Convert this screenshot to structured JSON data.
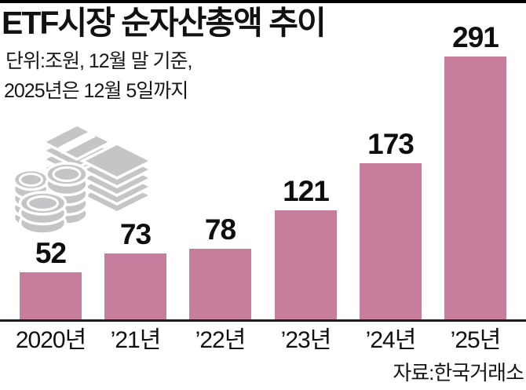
{
  "header": {
    "title": "ETF시장 순자산총액 추이",
    "subtitle_line1": "단위:조원, 12월 말 기준,",
    "subtitle_line2": "2025년은 12월 5일까지"
  },
  "source": "자료:한국거래소",
  "colors": {
    "bar": "#C77E9C",
    "illustration": "#C5C4C6",
    "text": "#111111",
    "rule": "#000000"
  },
  "icons": {
    "illustration": "money-stacks-icon"
  },
  "chart_data": {
    "type": "bar",
    "title": "ETF시장 순자산총액 추이",
    "subtitle": "단위:조원, 12월 말 기준, 2025년은 12월 5일까지",
    "categories": [
      "2020년",
      "’21년",
      "’22년",
      "’23년",
      "’24년",
      "’25년"
    ],
    "values": [
      52,
      73,
      78,
      121,
      173,
      291
    ],
    "unit": "조원",
    "ylim": [
      0,
      300
    ],
    "grid": false,
    "legend": "none",
    "data_labels": true,
    "bar_color": "#C77E9C",
    "source": "자료:한국거래소"
  }
}
